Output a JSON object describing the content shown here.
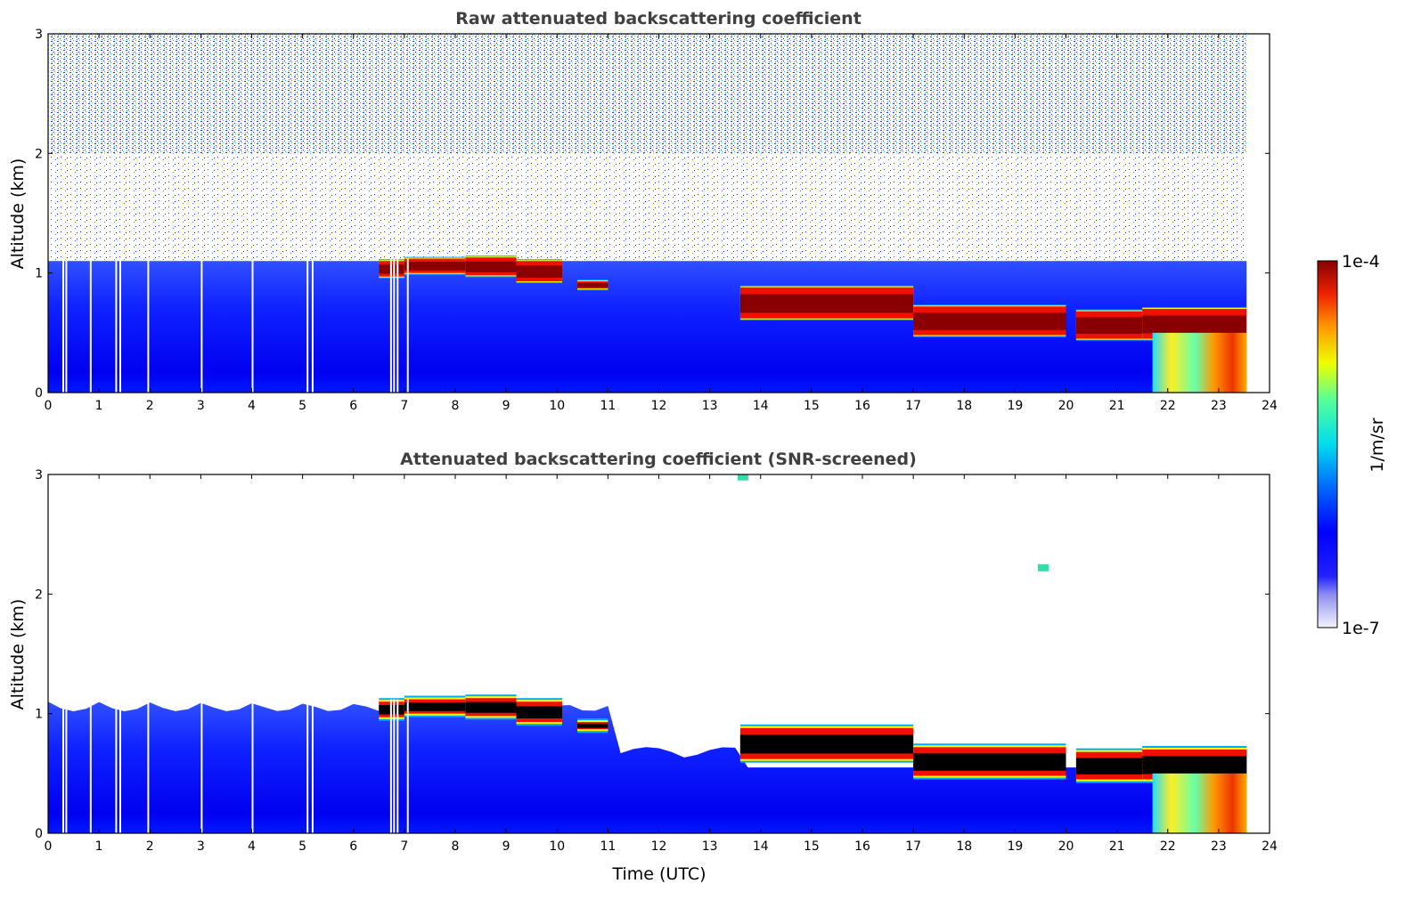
{
  "chart_data": [
    {
      "type": "heatmap",
      "title": "Raw attenuated backscattering coefficient",
      "xlabel": "",
      "ylabel": "Altitude (km)",
      "xlim": [
        0,
        24
      ],
      "ylim": [
        0,
        3
      ],
      "xticks": [
        "0",
        "1",
        "2",
        "3",
        "4",
        "5",
        "6",
        "7",
        "8",
        "9",
        "10",
        "11",
        "12",
        "13",
        "14",
        "15",
        "16",
        "17",
        "18",
        "19",
        "20",
        "21",
        "22",
        "23",
        "24"
      ],
      "yticks": [
        "0",
        "1",
        "2",
        "3"
      ],
      "data_end_hour": 23.55,
      "layers": [
        {
          "name": "",
          "kind": "noise",
          "x0": 0,
          "x1": 23.55,
          "y0": 1.15,
          "y1": 3.0
        },
        {
          "name": "",
          "kind": "boundary-layer",
          "x0": 0,
          "x1": 23.55,
          "y0": 0,
          "y1": 1.1
        },
        {
          "name": "",
          "kind": "cloud",
          "segments": [
            {
              "x0": 6.5,
              "x1": 7.0,
              "base": 0.97,
              "top": 1.1
            },
            {
              "x0": 7.0,
              "x1": 8.2,
              "base": 1.0,
              "top": 1.12
            },
            {
              "x0": 8.2,
              "x1": 9.2,
              "base": 0.98,
              "top": 1.13
            },
            {
              "x0": 9.2,
              "x1": 10.1,
              "base": 0.93,
              "top": 1.1
            },
            {
              "x0": 10.4,
              "x1": 11.0,
              "base": 0.87,
              "top": 0.93
            },
            {
              "x0": 13.6,
              "x1": 17.0,
              "base": 0.62,
              "top": 0.88
            },
            {
              "x0": 17.0,
              "x1": 20.0,
              "base": 0.48,
              "top": 0.72
            },
            {
              "x0": 20.2,
              "x1": 21.5,
              "base": 0.45,
              "top": 0.68
            },
            {
              "x0": 21.5,
              "x1": 23.55,
              "base": 0.45,
              "top": 0.7
            }
          ]
        },
        {
          "name": "",
          "kind": "precipitation",
          "x0": 21.7,
          "x1": 23.55,
          "y0": 0,
          "y1": 0.5
        }
      ]
    },
    {
      "type": "heatmap",
      "title": "Attenuated backscattering coefficient (SNR-screened)",
      "xlabel": "Time (UTC)",
      "ylabel": "Altitude (km)",
      "xlim": [
        0,
        24
      ],
      "ylim": [
        0,
        3
      ],
      "xticks": [
        "0",
        "1",
        "2",
        "3",
        "4",
        "5",
        "6",
        "7",
        "8",
        "9",
        "10",
        "11",
        "12",
        "13",
        "14",
        "15",
        "16",
        "17",
        "18",
        "19",
        "20",
        "21",
        "22",
        "23",
        "24"
      ],
      "yticks": [
        "0",
        "1",
        "2",
        "3"
      ],
      "data_end_hour": 23.55,
      "layers": [
        {
          "name": "",
          "kind": "boundary-layer",
          "x0": 0,
          "x1": 23.55,
          "y0": 0,
          "y1": 1.1
        },
        {
          "name": "",
          "kind": "cloud",
          "saturated_color": "#000000"
        },
        {
          "name": "",
          "kind": "precipitation",
          "x0": 21.7,
          "x1": 23.55,
          "y0": 0,
          "y1": 0.5
        },
        {
          "name": "",
          "kind": "isolated-echo",
          "x": 13.6,
          "y": 2.98
        },
        {
          "name": "",
          "kind": "isolated-echo",
          "x": 19.5,
          "y": 2.22
        }
      ]
    }
  ],
  "colorbar": {
    "label": "1/m/sr",
    "max_label": "1e-4",
    "min_label": "1e-7",
    "scale": "log",
    "range": [
      1e-07,
      0.0001
    ],
    "colormap": "jet-with-white-low"
  }
}
